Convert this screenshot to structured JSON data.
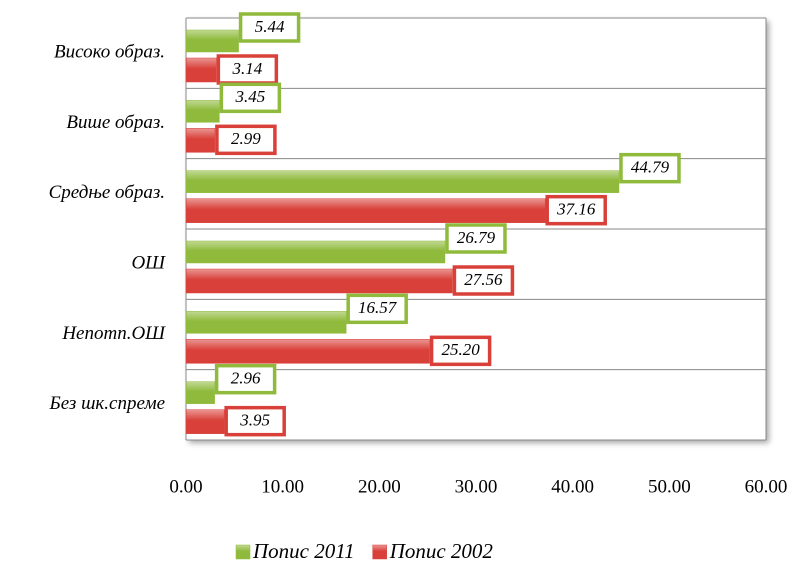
{
  "chart_data": {
    "type": "bar",
    "orientation": "horizontal",
    "categories": [
      "Високо образ.",
      "Више образ.",
      "Средње образ.",
      "ОШ",
      "Непотп.ОШ",
      "Без шк.спреме"
    ],
    "series": [
      {
        "name": "Попис 2011",
        "color": "#8fba3c",
        "values": [
          5.44,
          3.45,
          44.79,
          26.79,
          16.57,
          2.96
        ],
        "value_labels": [
          "5.44",
          "3.45",
          "44.79",
          "26.79",
          "16.57",
          "2.96"
        ]
      },
      {
        "name": "Попис 2002",
        "color": "#d9403a",
        "values": [
          3.14,
          2.99,
          37.16,
          27.56,
          25.2,
          3.95
        ],
        "value_labels": [
          "3.14",
          "2.99",
          "37.16",
          "27.56",
          "25.20",
          "3.95"
        ]
      }
    ],
    "xlim": [
      0,
      60
    ],
    "xticks": [
      {
        "value": 0,
        "label": "0.00"
      },
      {
        "value": 10,
        "label": "10.00"
      },
      {
        "value": 20,
        "label": "20.00"
      },
      {
        "value": 30,
        "label": "30.00"
      },
      {
        "value": 40,
        "label": "40.00"
      },
      {
        "value": 50,
        "label": "50.00"
      },
      {
        "value": 60,
        "label": "60.00"
      }
    ],
    "grid": true,
    "legend": "bottom"
  }
}
